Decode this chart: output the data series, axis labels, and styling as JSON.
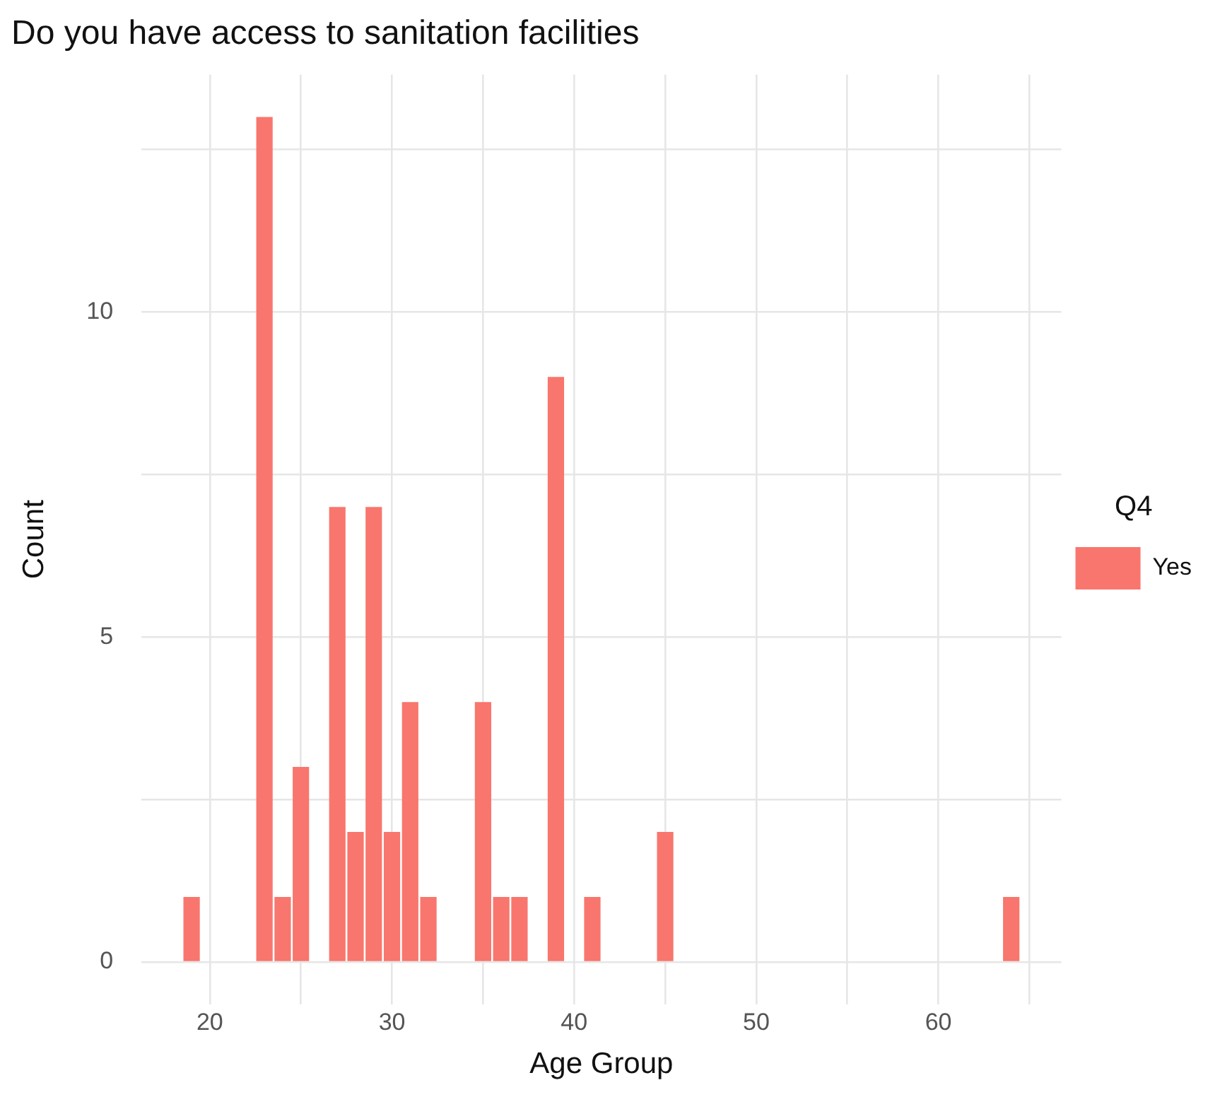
{
  "chart_data": {
    "type": "bar",
    "title": "Do you have access to sanitation facilities",
    "xlabel": "Age Group",
    "ylabel": "Count",
    "legend_title": "Q4",
    "legend": "right",
    "grid": true,
    "x": [
      19,
      23,
      24,
      25,
      27,
      28,
      29,
      30,
      31,
      32,
      35,
      36,
      37,
      39,
      41,
      45,
      64
    ],
    "series": [
      {
        "name": "Yes",
        "color": "#f8766d",
        "values": [
          1,
          13,
          1,
          3,
          7,
          2,
          7,
          2,
          4,
          1,
          4,
          1,
          1,
          9,
          1,
          2,
          1
        ]
      }
    ],
    "xlim": [
      16.25,
      66.75
    ],
    "xticks": [
      20,
      {
        "value": 25,
        "label": null
      },
      30,
      {
        "value": 35,
        "label": null
      },
      40,
      {
        "value": 45,
        "label": null
      },
      50,
      {
        "value": 55,
        "label": null
      },
      60,
      {
        "value": 65,
        "label": null
      }
    ],
    "ylim": [
      -0.65,
      13.65
    ],
    "yticks": [
      0,
      {
        "value": 2.5,
        "label": null
      },
      5,
      {
        "value": 7.5,
        "label": null
      },
      10,
      {
        "value": 12.5,
        "label": null
      }
    ]
  }
}
